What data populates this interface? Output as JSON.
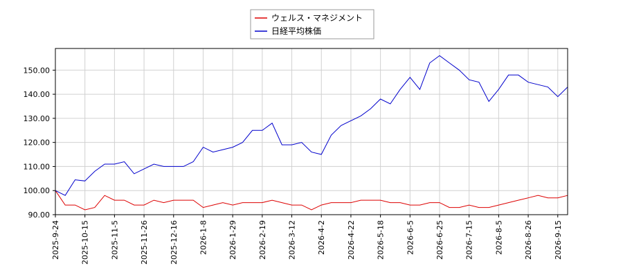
{
  "chart_data": {
    "type": "line",
    "categories": [
      "2025-9-24",
      null,
      null,
      "2025-10-15",
      null,
      null,
      "2025-11-5",
      null,
      null,
      "2025-11-26",
      null,
      null,
      "2025-12-16",
      null,
      null,
      "2026-1-8",
      null,
      null,
      "2026-1-29",
      null,
      null,
      "2026-2-19",
      null,
      null,
      "2026-3-12",
      null,
      null,
      "2026-4-2",
      null,
      null,
      "2026-4-22",
      null,
      null,
      "2026-5-18",
      null,
      null,
      "2026-6-5",
      null,
      null,
      "2026-6-25",
      null,
      null,
      "2026-7-15",
      null,
      null,
      "2026-8-5",
      null,
      null,
      "2026-8-26",
      null,
      null,
      "2026-9-15",
      null
    ],
    "series": [
      {
        "name": "ウェルス・マネジメント",
        "color": "#dd0000",
        "values": [
          100,
          94,
          94,
          92,
          93,
          98,
          96,
          96,
          94,
          94,
          96,
          95,
          96,
          96,
          96,
          93,
          94,
          95,
          94,
          95,
          95,
          95,
          96,
          95,
          94,
          94,
          92,
          94,
          95,
          95,
          95,
          96,
          96,
          96,
          95,
          95,
          94,
          94,
          95,
          95,
          93,
          93,
          94,
          93,
          93,
          94,
          95,
          96,
          97,
          98,
          97,
          97,
          98
        ]
      },
      {
        "name": "日経平均株価",
        "color": "#0000cc",
        "values": [
          100,
          98,
          104.5,
          104,
          108,
          111,
          111,
          112,
          107,
          109,
          111,
          110,
          110,
          110,
          112,
          118,
          116,
          117,
          118,
          120,
          125,
          125,
          128,
          119,
          119,
          120,
          116,
          115,
          123,
          127,
          129,
          131,
          134,
          138,
          136,
          142,
          147,
          142,
          153,
          156,
          153,
          150,
          146,
          145,
          137,
          142,
          148,
          148,
          145,
          144,
          143,
          139,
          143
        ]
      }
    ],
    "ylim": [
      90,
      159
    ],
    "yticks": [
      {
        "value": 90,
        "label": "90.00"
      },
      {
        "value": 100,
        "label": "100.00"
      },
      {
        "value": 110,
        "label": "110.00"
      },
      {
        "value": 120,
        "label": "120.00"
      },
      {
        "value": 130,
        "label": "130.00"
      },
      {
        "value": 140,
        "label": "140.00"
      },
      {
        "value": 150,
        "label": "150.00"
      }
    ],
    "grid": true,
    "legend": "top"
  }
}
